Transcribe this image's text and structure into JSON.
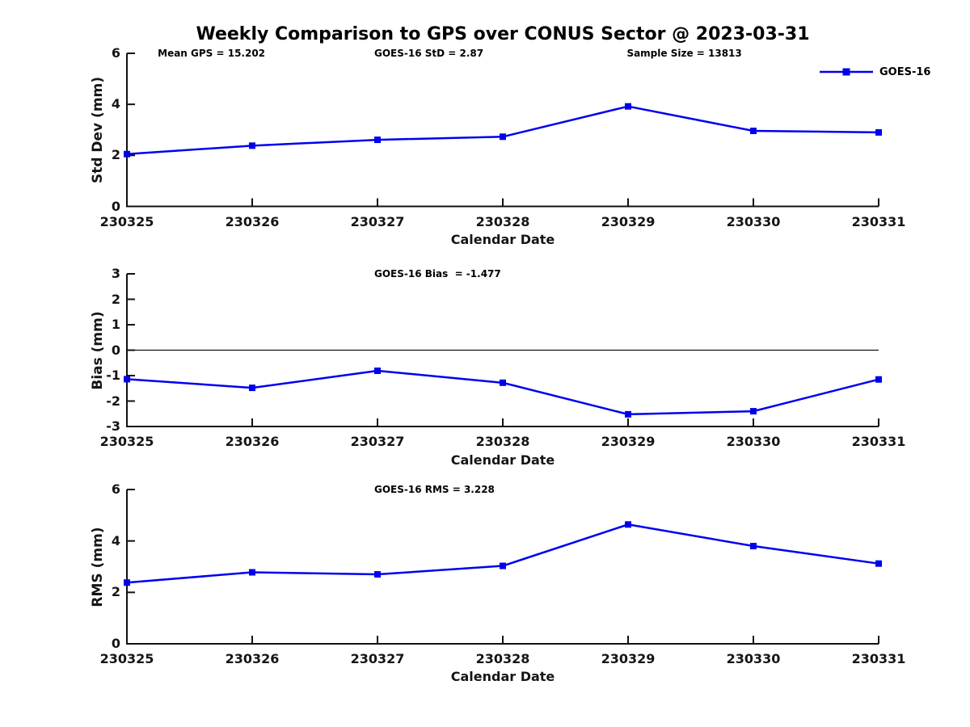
{
  "page": {
    "title": "Weekly Comparison to GPS over CONUS Sector @ 2023-03-31"
  },
  "legend": {
    "label": "GOES-16",
    "color": "#0000EE",
    "position": "upper right outside plot 1",
    "marker": "square"
  },
  "chart_data": [
    {
      "type": "line",
      "name": "std-dev-subplot",
      "ylabel": "Std Dev (mm)",
      "xlabel": "Calendar Date",
      "categories": [
        "230325",
        "230326",
        "230327",
        "230328",
        "230329",
        "230330",
        "230331"
      ],
      "series": [
        {
          "name": "GOES-16",
          "color": "#0000EE",
          "marker": "square",
          "values": [
            2.05,
            2.38,
            2.61,
            2.73,
            3.92,
            2.96,
            2.9
          ]
        }
      ],
      "ylim": [
        0,
        6
      ],
      "yticks": [
        0,
        2,
        4,
        6
      ],
      "grid": false,
      "annotations": [
        {
          "text": "Mean GPS = 15.202",
          "xfrac": 0.041
        },
        {
          "text": "GOES-16 StD = 2.87",
          "xfrac": 0.329
        },
        {
          "text": "Sample Size = 13813",
          "xfrac": 0.665
        }
      ]
    },
    {
      "type": "line",
      "name": "bias-subplot",
      "ylabel": "Bias (mm)",
      "xlabel": "Calendar Date",
      "categories": [
        "230325",
        "230326",
        "230327",
        "230328",
        "230329",
        "230330",
        "230331"
      ],
      "series": [
        {
          "name": "GOES-16",
          "color": "#0000EE",
          "marker": "square",
          "values": [
            -1.14,
            -1.48,
            -0.81,
            -1.28,
            -2.52,
            -2.4,
            -1.15
          ]
        }
      ],
      "ylim": [
        -3,
        3
      ],
      "yticks": [
        -3,
        -2,
        -1,
        0,
        1,
        2,
        3
      ],
      "zero_line": true,
      "grid": false,
      "annotations": [
        {
          "text": "GOES-16 Bias  = -1.477",
          "xfrac": 0.329
        }
      ]
    },
    {
      "type": "line",
      "name": "rms-subplot",
      "ylabel": "RMS (mm)",
      "xlabel": "Calendar Date",
      "categories": [
        "230325",
        "230326",
        "230327",
        "230328",
        "230329",
        "230330",
        "230331"
      ],
      "series": [
        {
          "name": "GOES-16",
          "color": "#0000EE",
          "marker": "square",
          "values": [
            2.38,
            2.78,
            2.7,
            3.03,
            4.64,
            3.8,
            3.12
          ]
        }
      ],
      "ylim": [
        0,
        6
      ],
      "yticks": [
        0,
        2,
        4,
        6
      ],
      "grid": false,
      "annotations": [
        {
          "text": "GOES-16 RMS = 3.228",
          "xfrac": 0.329
        }
      ]
    }
  ]
}
